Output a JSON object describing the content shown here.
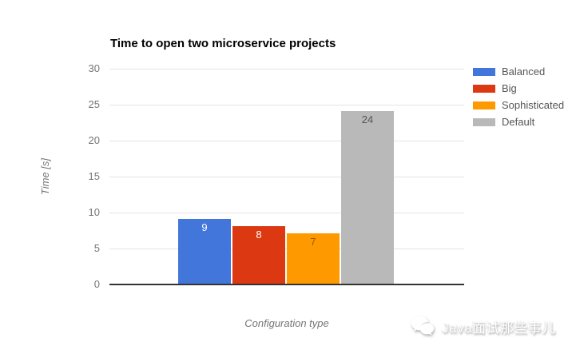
{
  "chart_data": {
    "type": "bar",
    "title": "Time to open two microservice projects",
    "xlabel": "Configuration type",
    "ylabel": "Time [s]",
    "ylim": [
      0,
      30
    ],
    "yticks": [
      30,
      25,
      20,
      15,
      10,
      5,
      0
    ],
    "grid": true,
    "legend_position": "right",
    "categories": [
      "Configuration type"
    ],
    "series": [
      {
        "name": "Balanced",
        "value": 9,
        "color": "#4376DB",
        "label_color": "#FFFFFF"
      },
      {
        "name": "Big",
        "value": 8,
        "color": "#DC3912",
        "label_color": "#FFFFFF"
      },
      {
        "name": "Sophisticated",
        "value": 7,
        "color": "#FF9900",
        "label_color": "#995C00"
      },
      {
        "name": "Default",
        "value": 24,
        "color": "#B9B9B9",
        "label_color": "#555555"
      }
    ]
  },
  "ui_colors": {
    "gridline": "#E4E4E4",
    "axis_line": "#333333",
    "tick_label": "#757575",
    "legend_label": "#555555",
    "title": "#000000"
  },
  "watermark": {
    "text": "Java面试那些事儿",
    "icon": "wechat-icon"
  }
}
